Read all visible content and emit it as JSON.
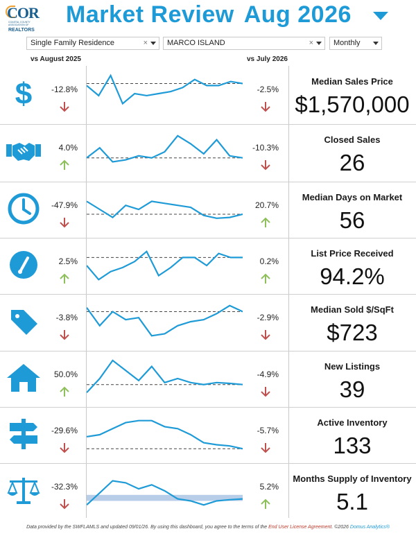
{
  "logo": {
    "name": "COR",
    "subtitle": "COASTAL COUNTY ASSOCIATION OF",
    "realtors": "REALTORS"
  },
  "header": {
    "title_part1": "Market Review",
    "title_part2": "Aug 2026"
  },
  "filters": {
    "property_type": "Single Family Residence",
    "area": "MARCO ISLAND",
    "period": "Monthly",
    "clear_symbol": "×"
  },
  "columns": {
    "yoy": "vs August 2025",
    "mom": "vs July 2026"
  },
  "colors": {
    "accent": "#1e9bd7",
    "up": "#8dbf5a",
    "down": "#c0504d",
    "band": "#b8cde8"
  },
  "metrics": [
    {
      "label": "Median Sales Price",
      "value": "$1,570,000",
      "yoy": "-12.8%",
      "yoy_dir": "down",
      "mom": "-2.5%",
      "mom_dir": "down",
      "icon": "dollar-icon",
      "spark": [
        0.3,
        0.55,
        0.05,
        0.75,
        0.5,
        0.55,
        0.5,
        0.45,
        0.35,
        0.15,
        0.3,
        0.3,
        0.2,
        0.25
      ],
      "ref": 0.25
    },
    {
      "label": "Closed Sales",
      "value": "26",
      "yoy": "4.0%",
      "yoy_dir": "up",
      "mom": "-10.3%",
      "mom_dir": "down",
      "icon": "handshake-icon",
      "spark": [
        0.65,
        0.4,
        0.75,
        0.7,
        0.6,
        0.65,
        0.5,
        0.1,
        0.3,
        0.55,
        0.2,
        0.6,
        0.65
      ],
      "ref": 0.65
    },
    {
      "label": "Median Days on Market",
      "value": "56",
      "yoy": "-47.9%",
      "yoy_dir": "down",
      "mom": "20.7%",
      "mom_dir": "up",
      "icon": "clock-icon",
      "spark": [
        0.3,
        0.5,
        0.7,
        0.4,
        0.5,
        0.3,
        0.35,
        0.4,
        0.45,
        0.65,
        0.72,
        0.7,
        0.62
      ],
      "ref": 0.62
    },
    {
      "label": "List Price Received",
      "value": "94.2%",
      "yoy": "2.5%",
      "yoy_dir": "up",
      "mom": "0.2%",
      "mom_dir": "up",
      "icon": "gauge-icon",
      "spark": [
        0.5,
        0.85,
        0.65,
        0.55,
        0.4,
        0.15,
        0.75,
        0.55,
        0.3,
        0.3,
        0.5,
        0.2,
        0.3,
        0.3
      ],
      "ref": 0.3
    },
    {
      "label": "Median Sold $/SqFt",
      "value": "$723",
      "yoy": "-3.8%",
      "yoy_dir": "down",
      "mom": "-2.9%",
      "mom_dir": "down",
      "icon": "tag-icon",
      "spark": [
        0.15,
        0.6,
        0.25,
        0.45,
        0.4,
        0.85,
        0.8,
        0.6,
        0.5,
        0.45,
        0.3,
        0.1,
        0.25
      ],
      "ref": 0.25
    },
    {
      "label": "New Listings",
      "value": "39",
      "yoy": "50.0%",
      "yoy_dir": "up",
      "mom": "-4.9%",
      "mom_dir": "down",
      "icon": "house-icon",
      "spark": [
        0.85,
        0.5,
        0.05,
        0.3,
        0.55,
        0.2,
        0.6,
        0.5,
        0.6,
        0.65,
        0.6,
        0.62,
        0.65
      ],
      "ref": 0.65
    },
    {
      "label": "Active Inventory",
      "value": "133",
      "yoy": "-29.6%",
      "yoy_dir": "down",
      "mom": "-5.7%",
      "mom_dir": "down",
      "icon": "signpost-icon",
      "spark": [
        0.55,
        0.5,
        0.35,
        0.2,
        0.15,
        0.15,
        0.3,
        0.35,
        0.5,
        0.7,
        0.75,
        0.78,
        0.85
      ],
      "ref": 0.85
    },
    {
      "label": "Months Supply of Inventory",
      "value": "5.1",
      "yoy": "-32.3%",
      "yoy_dir": "down",
      "mom": "5.2%",
      "mom_dir": "up",
      "icon": "scale-icon",
      "spark": [
        0.85,
        0.55,
        0.25,
        0.3,
        0.45,
        0.35,
        0.5,
        0.7,
        0.75,
        0.85,
        0.75,
        0.72,
        0.7
      ],
      "band": [
        0.6,
        0.75
      ]
    }
  ],
  "footer": {
    "text1": "Data provided by the SWFLAMLS and updated 09/01/26.  By using this dashboard, you agree to the terms of the ",
    "link": "End User License Agreement",
    "text2": ".  ©2026 ",
    "brand": "Domus Analytics®"
  }
}
